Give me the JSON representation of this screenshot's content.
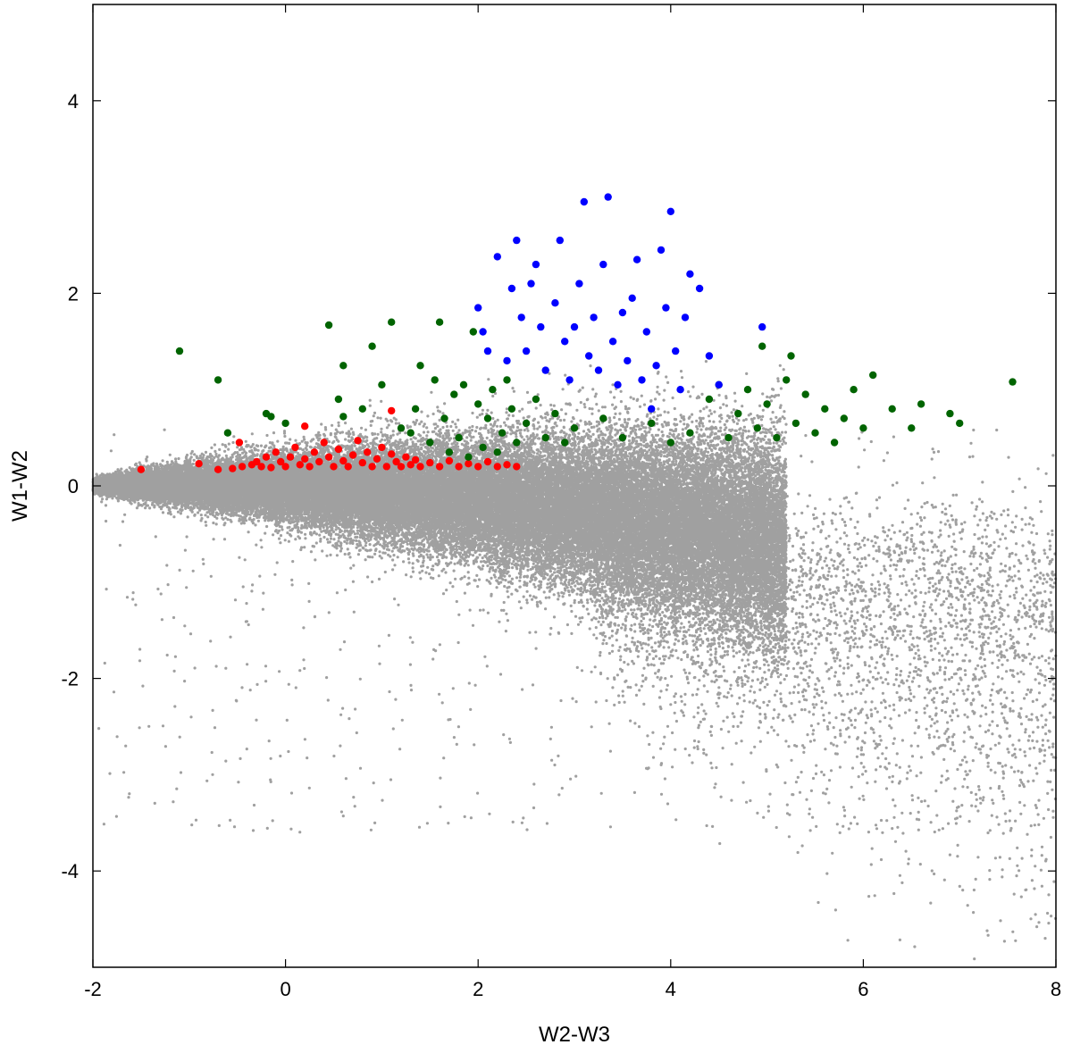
{
  "chart_data": {
    "type": "scatter",
    "title": "",
    "xlabel": "W2-W3",
    "ylabel": "W1-W2",
    "xlim": [
      -2,
      8
    ],
    "ylim": [
      -5,
      5
    ],
    "xticks": [
      -2,
      0,
      2,
      4,
      6,
      8
    ],
    "yticks": [
      -4,
      -2,
      0,
      2,
      4
    ],
    "xtick_labels": [
      "-2",
      "0",
      "2",
      "4",
      "6",
      "8"
    ],
    "ytick_labels": [
      "-4",
      "-2",
      "0",
      "2",
      "4"
    ],
    "grid": false,
    "legend": "none",
    "series": [
      {
        "color": "#a0a0a0",
        "marker": "small-dot",
        "distribution": "dense background population (~60000 points), fan-shaped: narrow near W1-W2 = 0 at W2-W3 = -2, spreading to W1-W2 in [-4, 1.5] toward W2-W3 = 8"
      },
      {
        "color": "#ff0000",
        "marker": "dot",
        "values": [
          [
            -1.5,
            0.17
          ],
          [
            -0.9,
            0.23
          ],
          [
            -0.7,
            0.17
          ],
          [
            -0.55,
            0.18
          ],
          [
            -0.48,
            0.45
          ],
          [
            -0.45,
            0.2
          ],
          [
            -0.35,
            0.22
          ],
          [
            -0.3,
            0.25
          ],
          [
            -0.25,
            0.2
          ],
          [
            -0.2,
            0.3
          ],
          [
            -0.15,
            0.19
          ],
          [
            -0.1,
            0.35
          ],
          [
            -0.05,
            0.25
          ],
          [
            0.0,
            0.2
          ],
          [
            0.05,
            0.3
          ],
          [
            0.1,
            0.4
          ],
          [
            0.15,
            0.22
          ],
          [
            0.2,
            0.62
          ],
          [
            0.2,
            0.28
          ],
          [
            0.25,
            0.2
          ],
          [
            0.3,
            0.35
          ],
          [
            0.35,
            0.25
          ],
          [
            0.4,
            0.45
          ],
          [
            0.45,
            0.3
          ],
          [
            0.5,
            0.2
          ],
          [
            0.55,
            0.38
          ],
          [
            0.6,
            0.26
          ],
          [
            0.65,
            0.2
          ],
          [
            0.7,
            0.32
          ],
          [
            0.75,
            0.47
          ],
          [
            0.8,
            0.24
          ],
          [
            0.85,
            0.35
          ],
          [
            0.9,
            0.2
          ],
          [
            0.95,
            0.28
          ],
          [
            1.0,
            0.4
          ],
          [
            1.05,
            0.2
          ],
          [
            1.1,
            0.78
          ],
          [
            1.1,
            0.33
          ],
          [
            1.15,
            0.25
          ],
          [
            1.2,
            0.2
          ],
          [
            1.25,
            0.3
          ],
          [
            1.3,
            0.22
          ],
          [
            1.35,
            0.27
          ],
          [
            1.4,
            0.2
          ],
          [
            1.5,
            0.24
          ],
          [
            1.6,
            0.2
          ],
          [
            1.7,
            0.26
          ],
          [
            1.8,
            0.2
          ],
          [
            1.9,
            0.23
          ],
          [
            2.0,
            0.2
          ],
          [
            2.1,
            0.25
          ],
          [
            2.2,
            0.2
          ],
          [
            2.3,
            0.22
          ],
          [
            2.4,
            0.2
          ]
        ]
      },
      {
        "color": "#006400",
        "marker": "dot",
        "values": [
          [
            -1.1,
            1.4
          ],
          [
            -0.7,
            1.1
          ],
          [
            -0.6,
            0.55
          ],
          [
            -0.2,
            0.75
          ],
          [
            -0.15,
            0.72
          ],
          [
            0.0,
            0.65
          ],
          [
            0.45,
            1.67
          ],
          [
            0.55,
            0.9
          ],
          [
            0.6,
            0.72
          ],
          [
            0.6,
            1.25
          ],
          [
            0.8,
            0.8
          ],
          [
            0.9,
            1.45
          ],
          [
            1.0,
            1.05
          ],
          [
            1.1,
            1.7
          ],
          [
            1.2,
            0.6
          ],
          [
            1.3,
            0.55
          ],
          [
            1.35,
            0.8
          ],
          [
            1.4,
            1.25
          ],
          [
            1.5,
            0.45
          ],
          [
            1.55,
            1.1
          ],
          [
            1.6,
            1.7
          ],
          [
            1.65,
            0.7
          ],
          [
            1.7,
            0.35
          ],
          [
            1.75,
            0.95
          ],
          [
            1.8,
            0.5
          ],
          [
            1.85,
            1.05
          ],
          [
            1.9,
            0.3
          ],
          [
            1.95,
            1.6
          ],
          [
            2.0,
            0.85
          ],
          [
            2.05,
            0.4
          ],
          [
            2.1,
            0.7
          ],
          [
            2.15,
            1.0
          ],
          [
            2.2,
            0.35
          ],
          [
            2.25,
            0.55
          ],
          [
            2.3,
            1.1
          ],
          [
            2.35,
            0.8
          ],
          [
            2.4,
            0.45
          ],
          [
            2.5,
            0.65
          ],
          [
            2.6,
            0.9
          ],
          [
            2.7,
            0.5
          ],
          [
            2.8,
            0.75
          ],
          [
            2.9,
            0.45
          ],
          [
            3.0,
            0.6
          ],
          [
            3.3,
            0.7
          ],
          [
            3.5,
            0.5
          ],
          [
            3.8,
            0.65
          ],
          [
            4.0,
            0.45
          ],
          [
            4.2,
            0.55
          ],
          [
            4.4,
            0.9
          ],
          [
            4.5,
            1.05
          ],
          [
            4.6,
            0.5
          ],
          [
            4.7,
            0.75
          ],
          [
            4.8,
            1.0
          ],
          [
            4.9,
            0.6
          ],
          [
            4.95,
            1.45
          ],
          [
            5.0,
            0.85
          ],
          [
            5.1,
            0.5
          ],
          [
            5.2,
            1.1
          ],
          [
            5.25,
            1.35
          ],
          [
            5.3,
            0.65
          ],
          [
            5.4,
            0.95
          ],
          [
            5.5,
            0.55
          ],
          [
            5.6,
            0.8
          ],
          [
            5.7,
            0.45
          ],
          [
            5.8,
            0.7
          ],
          [
            5.9,
            1.0
          ],
          [
            6.0,
            0.6
          ],
          [
            6.1,
            1.15
          ],
          [
            6.3,
            0.8
          ],
          [
            6.5,
            0.6
          ],
          [
            6.6,
            0.85
          ],
          [
            6.9,
            0.75
          ],
          [
            7.0,
            0.65
          ],
          [
            7.55,
            1.08
          ]
        ]
      },
      {
        "color": "#0000ff",
        "marker": "dot",
        "values": [
          [
            2.0,
            1.85
          ],
          [
            2.05,
            1.6
          ],
          [
            2.1,
            1.4
          ],
          [
            2.2,
            2.38
          ],
          [
            2.3,
            1.3
          ],
          [
            2.35,
            2.05
          ],
          [
            2.4,
            2.55
          ],
          [
            2.45,
            1.75
          ],
          [
            2.5,
            1.4
          ],
          [
            2.55,
            2.1
          ],
          [
            2.6,
            2.3
          ],
          [
            2.65,
            1.65
          ],
          [
            2.7,
            1.2
          ],
          [
            2.8,
            1.9
          ],
          [
            2.85,
            2.55
          ],
          [
            2.9,
            1.5
          ],
          [
            2.95,
            1.1
          ],
          [
            3.0,
            1.65
          ],
          [
            3.05,
            2.1
          ],
          [
            3.1,
            2.95
          ],
          [
            3.15,
            1.35
          ],
          [
            3.2,
            1.75
          ],
          [
            3.25,
            1.2
          ],
          [
            3.3,
            2.3
          ],
          [
            3.35,
            3.0
          ],
          [
            3.4,
            1.5
          ],
          [
            3.45,
            1.05
          ],
          [
            3.5,
            1.8
          ],
          [
            3.55,
            1.3
          ],
          [
            3.6,
            1.95
          ],
          [
            3.65,
            2.35
          ],
          [
            3.7,
            1.1
          ],
          [
            3.75,
            1.6
          ],
          [
            3.8,
            0.8
          ],
          [
            3.85,
            1.25
          ],
          [
            3.9,
            2.45
          ],
          [
            3.95,
            1.85
          ],
          [
            4.0,
            2.85
          ],
          [
            4.05,
            1.4
          ],
          [
            4.1,
            1.0
          ],
          [
            4.15,
            1.75
          ],
          [
            4.2,
            2.2
          ],
          [
            4.3,
            2.05
          ],
          [
            4.4,
            1.35
          ],
          [
            4.5,
            1.05
          ],
          [
            4.95,
            1.65
          ]
        ]
      }
    ]
  }
}
